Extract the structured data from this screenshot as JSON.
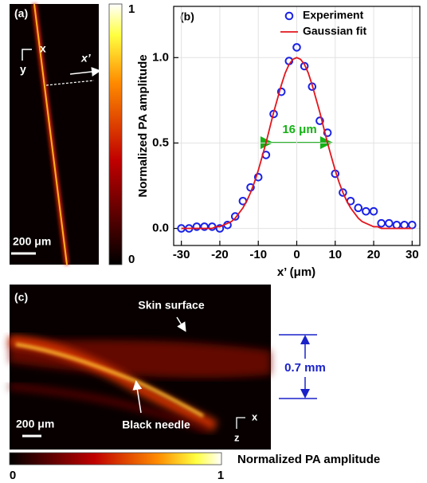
{
  "panel_a": {
    "label": "(a)",
    "axis_x": "x",
    "axis_y": "y",
    "profile_axis": "x’",
    "scale_bar": "200 μm",
    "colorbar_max": "1",
    "colorbar_min": "0"
  },
  "chart_data": {
    "type": "line",
    "panel_label": "(b)",
    "xlabel": "x’ (μm)",
    "ylabel": "Normalized PA amplitude",
    "xlim": [
      -32,
      32
    ],
    "xticks": [
      -30,
      -20,
      -10,
      0,
      10,
      20,
      30
    ],
    "ylim": [
      -0.1,
      1.3
    ],
    "yticks": [
      {
        "value": 0,
        "label": "0.0"
      },
      {
        "value": 0.5,
        "label": "0.5"
      },
      {
        "value": 1,
        "label": "1.0"
      }
    ],
    "grid": true,
    "legend": "upper right",
    "annotation": "16 μm",
    "series": [
      {
        "name": "Experiment",
        "color": "#1a22e6",
        "mode": "markers",
        "x": [
          -30,
          -28,
          -26,
          -24,
          -22,
          -20,
          -18,
          -16,
          -14,
          -12,
          -10,
          -8,
          -6,
          -4,
          -2,
          0,
          2,
          4,
          6,
          8,
          10,
          12,
          14,
          16,
          18,
          20,
          22,
          24,
          26,
          28,
          30
        ],
        "values": [
          0,
          0,
          0.01,
          0.01,
          0.01,
          0,
          0.02,
          0.07,
          0.16,
          0.24,
          0.3,
          0.43,
          0.67,
          0.8,
          0.98,
          1.06,
          0.95,
          0.83,
          0.63,
          0.56,
          0.32,
          0.21,
          0.16,
          0.12,
          0.1,
          0.1,
          0.03,
          0.03,
          0.02,
          0.02,
          0.02
        ]
      },
      {
        "name": "Gaussian fit",
        "color": "#e3161c",
        "mode": "line",
        "x": [
          -30,
          -29,
          -28,
          -27,
          -26,
          -25,
          -24,
          -23,
          -22,
          -21,
          -20,
          -19,
          -18,
          -17,
          -16,
          -15,
          -14,
          -13,
          -12,
          -11,
          -10,
          -9,
          -8,
          -7,
          -6,
          -5,
          -4,
          -3,
          -2,
          -1,
          0,
          1,
          2,
          3,
          4,
          5,
          6,
          7,
          8,
          9,
          10,
          11,
          12,
          13,
          14,
          15,
          16,
          17,
          18,
          19,
          20,
          21,
          22,
          23,
          24,
          25,
          26,
          27,
          28,
          29,
          30
        ],
        "values": [
          0,
          0,
          0,
          0,
          0,
          0,
          0,
          0,
          0,
          0.01,
          0.01,
          0.02,
          0.03,
          0.04,
          0.06,
          0.09,
          0.12,
          0.16,
          0.21,
          0.27,
          0.34,
          0.42,
          0.5,
          0.59,
          0.68,
          0.76,
          0.84,
          0.91,
          0.96,
          0.99,
          1,
          0.99,
          0.96,
          0.91,
          0.84,
          0.76,
          0.68,
          0.59,
          0.5,
          0.42,
          0.34,
          0.27,
          0.21,
          0.16,
          0.12,
          0.09,
          0.06,
          0.04,
          0.03,
          0.02,
          0.01,
          0.01,
          0,
          0,
          0,
          0,
          0,
          0,
          0,
          0,
          0
        ]
      }
    ]
  },
  "panel_c": {
    "label": "(c)",
    "annotation_top": "Skin surface",
    "annotation_bottom": "Black needle",
    "depth": "0.7 mm",
    "scale_bar": "200 μm",
    "axis_x": "x",
    "axis_z": "z",
    "colorbar_label": "Normalized PA amplitude",
    "colorbar_min": "0",
    "colorbar_max": "1"
  }
}
